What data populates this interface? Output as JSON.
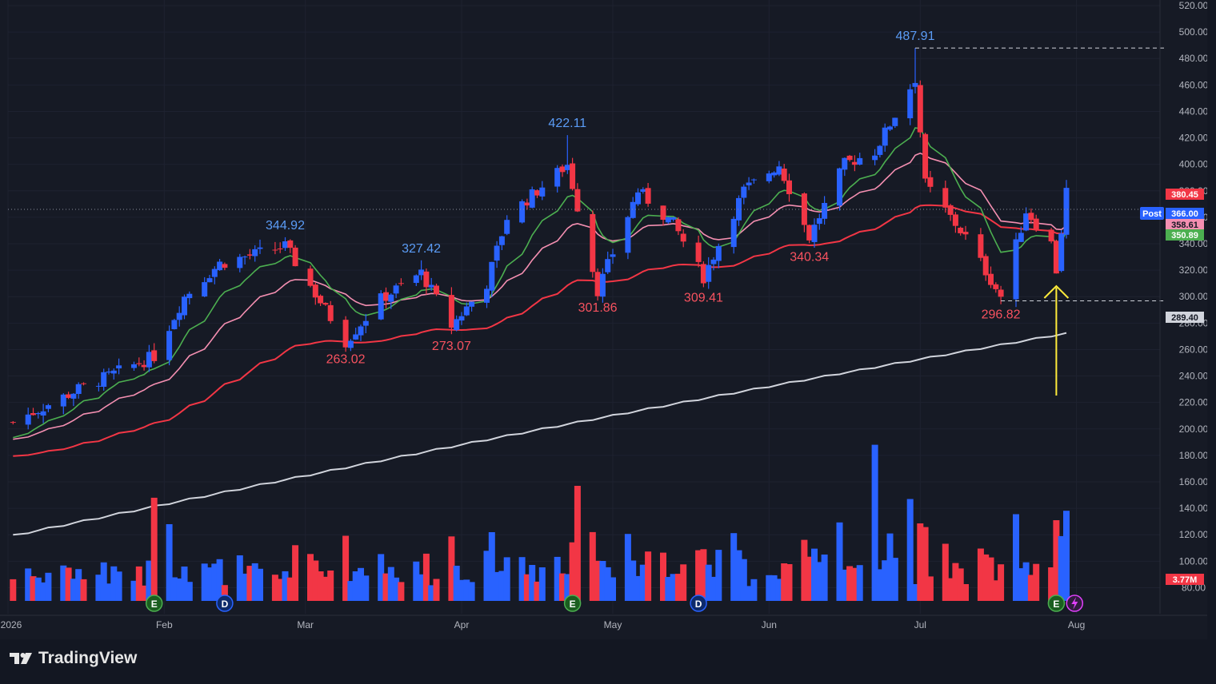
{
  "brand": {
    "name": "TradingView",
    "icon": "tradingview-logo-icon"
  },
  "colors": {
    "background": "#161a25",
    "up": "#2962ff",
    "down": "#f23645",
    "ema_short": "#4caf50",
    "ema_mid": "#f48fb1",
    "ema_long": "#f23645",
    "sma_long": "#d1d4dc",
    "annotation_arrow": "#ffeb3b",
    "grid": "#1e2230",
    "axis_text": "#b2b5be"
  },
  "chart_data": {
    "type": "candlestick",
    "ylim": [
      70,
      520
    ],
    "price_ticks": [
      "520.00",
      "500.00",
      "480.00",
      "460.00",
      "440.00",
      "420.00",
      "400.00",
      "380.00",
      "360.00",
      "340.00",
      "320.00",
      "300.00",
      "280.00",
      "260.00",
      "240.00",
      "220.00",
      "200.00",
      "180.00",
      "160.00",
      "140.00",
      "120.00",
      "100.00",
      "80.00"
    ],
    "x_ticks": [
      "2026",
      "Feb",
      "Mar",
      "Apr",
      "May",
      "Jun",
      "Jul",
      "Aug"
    ],
    "grid": true,
    "price_labels": [
      {
        "label": "",
        "value": "380.45",
        "color": "#f23645"
      },
      {
        "label": "Post",
        "value": "366.00",
        "color": "#2962ff"
      },
      {
        "label": "",
        "value": "358.61",
        "color": "#f48fb1"
      },
      {
        "label": "",
        "value": "350.89",
        "color": "#4caf50"
      },
      {
        "label": "",
        "value": "289.40",
        "color": "#d1d4dc"
      },
      {
        "label": "",
        "value": "3.77M",
        "color": "#f23645"
      }
    ],
    "annotations": {
      "highs": [
        {
          "text": "344.92",
          "date": "2026-02-25",
          "value": 344.92
        },
        {
          "text": "327.42",
          "date": "2026-03-24",
          "value": 327.42
        },
        {
          "text": "422.11",
          "date": "2026-04-22",
          "value": 422.11
        },
        {
          "text": "487.91",
          "date": "2026-06-30",
          "value": 487.91
        }
      ],
      "lows": [
        {
          "text": "263.02",
          "date": "2026-03-09",
          "value": 263.02
        },
        {
          "text": "273.07",
          "date": "2026-03-30",
          "value": 273.07
        },
        {
          "text": "301.86",
          "date": "2026-04-28",
          "value": 301.86
        },
        {
          "text": "309.41",
          "date": "2026-05-19",
          "value": 309.41
        },
        {
          "text": "340.34",
          "date": "2026-06-09",
          "value": 340.34
        },
        {
          "text": "296.82",
          "date": "2026-07-17",
          "value": 296.82
        }
      ]
    },
    "event_markers": [
      {
        "letter": "E",
        "date": "2026-01-30"
      },
      {
        "letter": "D",
        "date": "2026-02-13"
      },
      {
        "letter": "E",
        "date": "2026-04-23"
      },
      {
        "letter": "D",
        "date": "2026-05-18"
      },
      {
        "letter": "E",
        "date": "2026-07-28"
      }
    ],
    "key_points": [
      {
        "date": "2026-01-02",
        "close": 205
      },
      {
        "date": "2026-01-15",
        "close": 230
      },
      {
        "date": "2026-01-30",
        "close": 255
      },
      {
        "date": "2026-02-05",
        "close": 300
      },
      {
        "date": "2026-02-12",
        "close": 325
      },
      {
        "date": "2026-02-25",
        "close": 338
      },
      {
        "date": "2026-03-09",
        "close": 266
      },
      {
        "date": "2026-03-16",
        "close": 298
      },
      {
        "date": "2026-03-24",
        "close": 318
      },
      {
        "date": "2026-03-30",
        "close": 278
      },
      {
        "date": "2026-04-06",
        "close": 310
      },
      {
        "date": "2026-04-10",
        "close": 360
      },
      {
        "date": "2026-04-22",
        "close": 400
      },
      {
        "date": "2026-04-28",
        "close": 305
      },
      {
        "date": "2026-05-06",
        "close": 380
      },
      {
        "date": "2026-05-13",
        "close": 355
      },
      {
        "date": "2026-05-19",
        "close": 315
      },
      {
        "date": "2026-05-27",
        "close": 380
      },
      {
        "date": "2026-06-03",
        "close": 400
      },
      {
        "date": "2026-06-09",
        "close": 345
      },
      {
        "date": "2026-06-16",
        "close": 400
      },
      {
        "date": "2026-06-22",
        "close": 410
      },
      {
        "date": "2026-06-30",
        "close": 465
      },
      {
        "date": "2026-07-02",
        "close": 385
      },
      {
        "date": "2026-07-10",
        "close": 345
      },
      {
        "date": "2026-07-17",
        "close": 300
      },
      {
        "date": "2026-07-22",
        "close": 365
      },
      {
        "date": "2026-07-27",
        "close": 340
      },
      {
        "date": "2026-07-28",
        "close": 320
      },
      {
        "date": "2026-07-30",
        "close": 380
      }
    ]
  }
}
